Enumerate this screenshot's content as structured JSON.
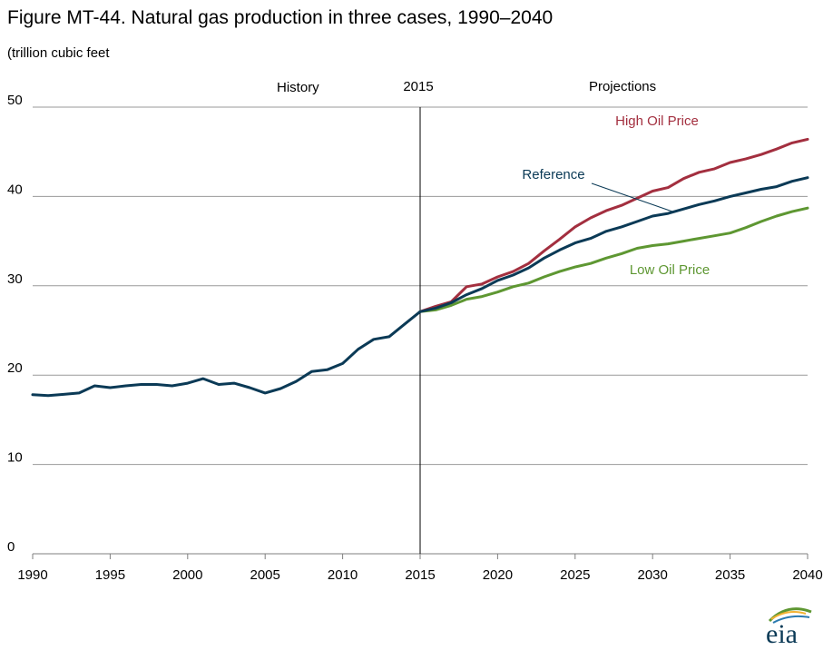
{
  "chart_data": {
    "type": "line",
    "title": "Figure MT-44. Natural gas production in three cases, 1990–2040",
    "subtitle": "(trillion cubic feet",
    "xlabel": "",
    "ylabel": "",
    "xlim": [
      1990,
      2040
    ],
    "ylim": [
      0,
      50
    ],
    "x_ticks": [
      1990,
      1995,
      2000,
      2005,
      2010,
      2015,
      2020,
      2025,
      2030,
      2035,
      2040
    ],
    "y_ticks": [
      0,
      10,
      20,
      30,
      40,
      50
    ],
    "grid": true,
    "divider": {
      "x": 2015,
      "label": "2015"
    },
    "region_labels": {
      "history": "History",
      "projections": "Projections"
    },
    "history": {
      "color": "#0b3a56",
      "x": [
        1990,
        1991,
        1992,
        1993,
        1994,
        1995,
        1996,
        1997,
        1998,
        1999,
        2000,
        2001,
        2002,
        2003,
        2004,
        2005,
        2006,
        2007,
        2008,
        2009,
        2010,
        2011,
        2012,
        2013,
        2014,
        2015
      ],
      "values": [
        17.8,
        17.7,
        17.85,
        18.0,
        18.8,
        18.6,
        18.8,
        18.95,
        18.95,
        18.8,
        19.1,
        19.6,
        18.95,
        19.1,
        18.6,
        18.0,
        18.5,
        19.3,
        20.4,
        20.6,
        21.3,
        22.9,
        24.0,
        24.3,
        25.7,
        27.1
      ]
    },
    "series": [
      {
        "name": "High Oil Price",
        "color": "#a32f3f",
        "x": [
          2015,
          2016,
          2017,
          2018,
          2019,
          2020,
          2021,
          2022,
          2023,
          2024,
          2025,
          2026,
          2027,
          2028,
          2029,
          2030,
          2031,
          2032,
          2033,
          2034,
          2035,
          2036,
          2037,
          2038,
          2039,
          2040
        ],
        "values": [
          27.1,
          27.7,
          28.2,
          29.9,
          30.2,
          31.0,
          31.6,
          32.5,
          33.9,
          35.2,
          36.6,
          37.6,
          38.4,
          39.0,
          39.8,
          40.6,
          41.0,
          42.0,
          42.7,
          43.1,
          43.8,
          44.2,
          44.7,
          45.3,
          46.0,
          46.4
        ]
      },
      {
        "name": "Reference",
        "color": "#0b3a56",
        "x": [
          2015,
          2016,
          2017,
          2018,
          2019,
          2020,
          2021,
          2022,
          2023,
          2024,
          2025,
          2026,
          2027,
          2028,
          2029,
          2030,
          2031,
          2032,
          2033,
          2034,
          2035,
          2036,
          2037,
          2038,
          2039,
          2040
        ],
        "values": [
          27.1,
          27.5,
          28.1,
          29.0,
          29.7,
          30.6,
          31.2,
          32.0,
          33.1,
          34.0,
          34.8,
          35.3,
          36.1,
          36.6,
          37.2,
          37.8,
          38.1,
          38.6,
          39.1,
          39.5,
          40.0,
          40.4,
          40.8,
          41.1,
          41.7,
          42.1
        ]
      },
      {
        "name": "Low Oil Price",
        "color": "#5e9732",
        "x": [
          2015,
          2016,
          2017,
          2018,
          2019,
          2020,
          2021,
          2022,
          2023,
          2024,
          2025,
          2026,
          2027,
          2028,
          2029,
          2030,
          2031,
          2032,
          2033,
          2034,
          2035,
          2036,
          2037,
          2038,
          2039,
          2040
        ],
        "values": [
          27.1,
          27.3,
          27.8,
          28.5,
          28.8,
          29.3,
          29.9,
          30.3,
          31.0,
          31.6,
          32.1,
          32.5,
          33.1,
          33.6,
          34.2,
          34.5,
          34.7,
          35.0,
          35.3,
          35.6,
          35.9,
          36.5,
          37.2,
          37.8,
          38.3,
          38.7
        ]
      }
    ]
  }
}
